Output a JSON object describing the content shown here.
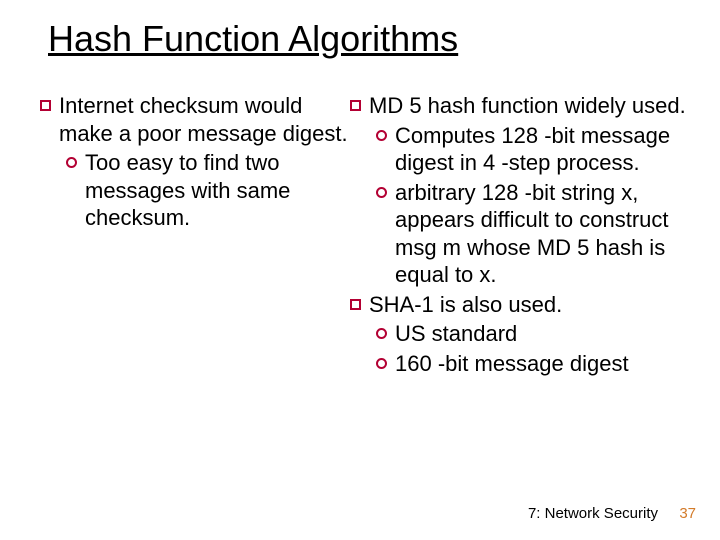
{
  "title": "Hash Function Algorithms",
  "left": {
    "b1": "Internet checksum would make a poor message digest.",
    "b1_1": "Too easy to find two messages with same checksum."
  },
  "right": {
    "b1": "MD 5 hash function widely used.",
    "b1_1": "Computes 128 -bit message digest in 4 -step process.",
    "b1_2": "arbitrary 128 -bit string x, appears difficult to construct msg m whose MD 5 hash is equal to x.",
    "b2": "SHA-1 is also used.",
    "b2_1": "US standard",
    "b2_2": "160 -bit message digest"
  },
  "footer": {
    "chapter": "7: Network Security",
    "page": "37"
  },
  "colors": {
    "bullet_border": "#b30033",
    "page_number": "#d37b2a",
    "background": "#ffffff",
    "text": "#000000"
  },
  "fonts": {
    "title_size_pt": 36,
    "body_size_pt": 22,
    "footer_size_pt": 15,
    "family": "Comic Sans MS"
  }
}
